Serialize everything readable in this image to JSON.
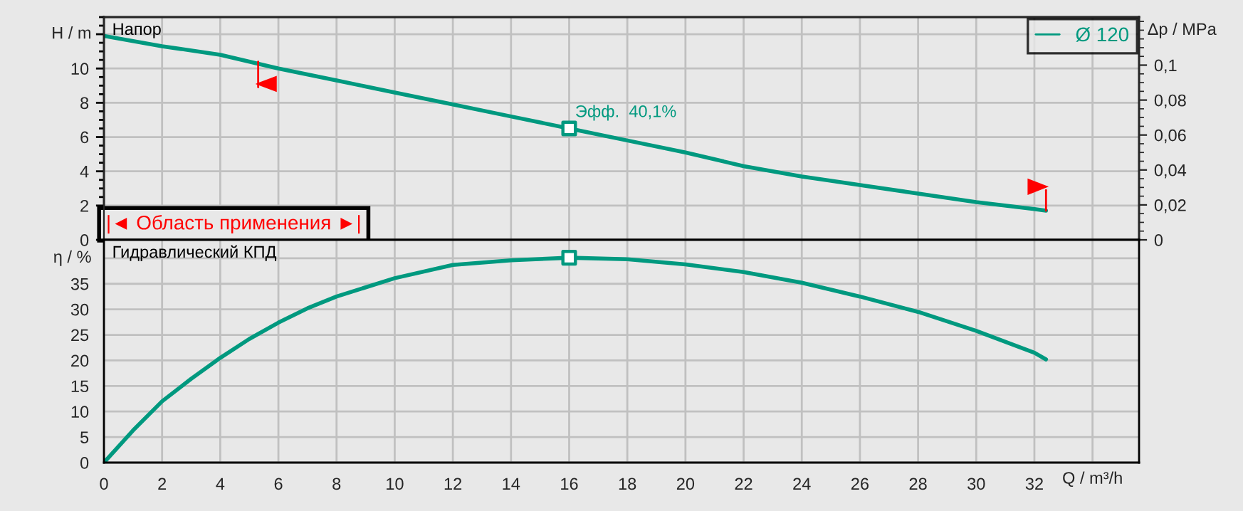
{
  "chart_data": [
    {
      "type": "line",
      "ylabel": "H / m",
      "y2label": "Δp / MPa",
      "xlim": [
        0,
        35.6
      ],
      "xticks": [
        0,
        2,
        4,
        6,
        8,
        10,
        12,
        14,
        16,
        18,
        20,
        22,
        24,
        26,
        28,
        30,
        32,
        {
          "value": 34,
          "label": null
        }
      ],
      "ylim": [
        0,
        13
      ],
      "yticks": [
        0,
        2,
        4,
        6,
        8,
        10,
        {
          "value": 12,
          "label": null
        }
      ],
      "y2lim": [
        0,
        0.1275
      ],
      "y2ticks": [
        {
          "value": 0,
          "label": "0"
        },
        {
          "value": 0.02,
          "label": "0,02"
        },
        {
          "value": 0.04,
          "label": "0,04"
        },
        {
          "value": 0.06,
          "label": "0,06"
        },
        {
          "value": 0.08,
          "label": "0,08"
        },
        {
          "value": 0.1,
          "label": "0,1"
        }
      ],
      "tick_labels": "y",
      "grid": true,
      "legend": "top right",
      "annotations": [
        "Напор",
        {
          "text": "Эфф.  40,1%",
          "x": 16,
          "y": 6.5
        },
        "|◄ Область применения ►|"
      ],
      "series": [
        {
          "name": "Ø 120",
          "color": "#00997f",
          "x": [
            0,
            2,
            4,
            6,
            8,
            10,
            12,
            14,
            16,
            18,
            20,
            22,
            24,
            26,
            28,
            30,
            32,
            32.4
          ],
          "values": [
            11.9,
            11.3,
            10.8,
            10.0,
            9.3,
            8.6,
            7.9,
            7.2,
            6.5,
            5.8,
            5.1,
            4.3,
            3.7,
            3.2,
            2.7,
            2.2,
            1.8,
            1.7
          ]
        },
        {
          "type": "scatter",
          "marker": "square",
          "color": "#00997f",
          "x": [
            16
          ],
          "values": [
            6.5
          ]
        }
      ]
    },
    {
      "type": "line",
      "ylabel": "η / %",
      "xlabel": "Q / m³/h",
      "xlim": [
        0,
        35.6
      ],
      "xticks": [
        0,
        2,
        4,
        6,
        8,
        10,
        12,
        14,
        16,
        18,
        20,
        22,
        24,
        26,
        28,
        30,
        32,
        {
          "value": 34,
          "label": null
        }
      ],
      "ylim": [
        0,
        43.6
      ],
      "yticks": [
        0,
        5,
        10,
        15,
        20,
        25,
        30,
        35,
        {
          "value": 40,
          "label": null
        }
      ],
      "grid": true,
      "annotations": [
        "Гидравлический КПД"
      ],
      "series": [
        {
          "color": "#00997f",
          "x": [
            0,
            1,
            2,
            3,
            4,
            5,
            6,
            7,
            8,
            9,
            10,
            12,
            14,
            16,
            18,
            20,
            22,
            24,
            26,
            28,
            30,
            32,
            32.4
          ],
          "values": [
            0,
            6.3,
            12.0,
            16.4,
            20.5,
            24.2,
            27.4,
            30.2,
            32.5,
            34.3,
            36.1,
            38.7,
            39.6,
            40.1,
            39.8,
            38.8,
            37.3,
            35.2,
            32.5,
            29.5,
            25.8,
            21.5,
            20.2
          ]
        },
        {
          "type": "scatter",
          "marker": "square",
          "color": "#00997f",
          "x": [
            16
          ],
          "values": [
            40.1
          ]
        }
      ]
    }
  ]
}
